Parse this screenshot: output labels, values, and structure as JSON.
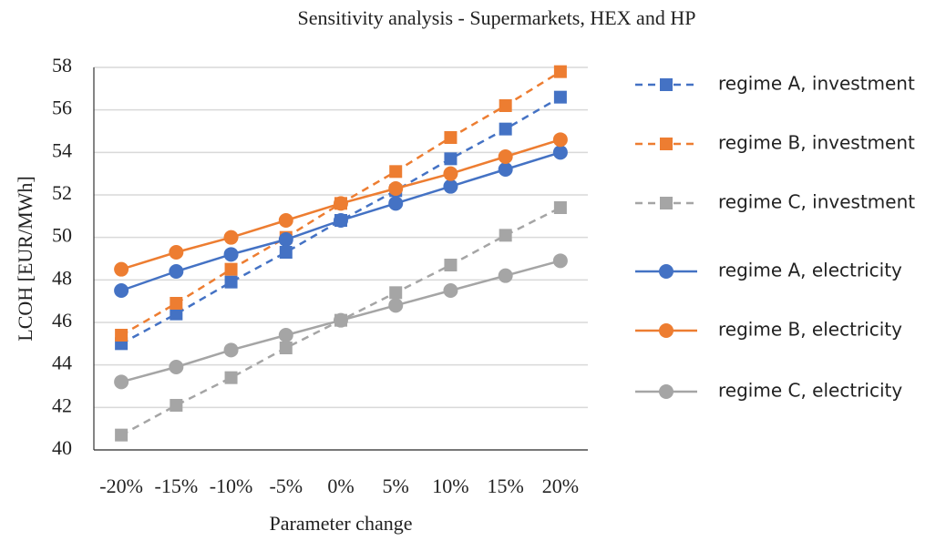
{
  "chart_data": {
    "type": "line",
    "title": "Sensitivity analysis - Supermarkets, HEX and HP",
    "x_label": "Parameter change",
    "y_label": "LCOH [EUR/MWh]",
    "categories": [
      "-20%",
      "-15%",
      "-10%",
      "-5%",
      "0%",
      "5%",
      "10%",
      "15%",
      "20%"
    ],
    "ylim": [
      40,
      58
    ],
    "yticks": [
      40,
      42,
      44,
      46,
      48,
      50,
      52,
      54,
      56,
      58
    ],
    "grid": true,
    "legend": "right",
    "series": [
      {
        "name": "regime A, investment",
        "color": "#4472c4",
        "marker": "square",
        "line_style": "dashed",
        "values": [
          45.0,
          46.4,
          47.9,
          49.3,
          50.8,
          52.2,
          53.7,
          55.1,
          56.6
        ]
      },
      {
        "name": "regime B, investment",
        "color": "#ed7d31",
        "marker": "square",
        "line_style": "dashed",
        "values": [
          45.4,
          46.9,
          48.5,
          50.0,
          51.6,
          53.1,
          54.7,
          56.2,
          57.8
        ]
      },
      {
        "name": "regime C, investment",
        "color": "#a5a5a5",
        "marker": "square",
        "line_style": "dashed",
        "values": [
          40.7,
          42.1,
          43.4,
          44.8,
          46.1,
          47.4,
          48.7,
          50.1,
          51.4
        ]
      },
      {
        "name": "regime A, electricity",
        "color": "#4472c4",
        "marker": "circle",
        "line_style": "solid",
        "values": [
          47.5,
          48.4,
          49.2,
          49.9,
          50.8,
          51.6,
          52.4,
          53.2,
          54.0
        ]
      },
      {
        "name": "regime B, electricity",
        "color": "#ed7d31",
        "marker": "circle",
        "line_style": "solid",
        "values": [
          48.5,
          49.3,
          50.0,
          50.8,
          51.6,
          52.3,
          53.0,
          53.8,
          54.6
        ]
      },
      {
        "name": "regime C, electricity",
        "color": "#a5a5a5",
        "marker": "circle",
        "line_style": "solid",
        "values": [
          43.2,
          43.9,
          44.7,
          45.4,
          46.1,
          46.8,
          47.5,
          48.2,
          48.9
        ]
      }
    ]
  }
}
